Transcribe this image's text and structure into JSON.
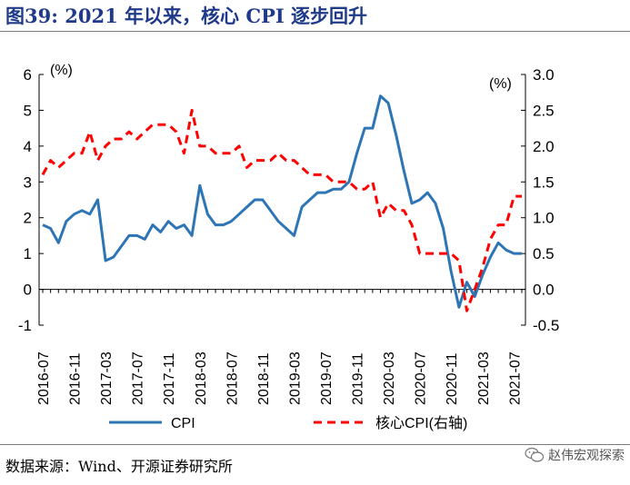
{
  "header": {
    "title": "图39:  2021 年以来，核心 CPI 逐步回升"
  },
  "footer": {
    "source": "数据来源：Wind、开源证券研究所",
    "watermark": "赵伟宏观探索"
  },
  "chart_data": {
    "type": "line",
    "title": "",
    "x": [
      "2016-07",
      "2016-08",
      "2016-09",
      "2016-10",
      "2016-11",
      "2016-12",
      "2017-01",
      "2017-02",
      "2017-03",
      "2017-04",
      "2017-05",
      "2017-06",
      "2017-07",
      "2017-08",
      "2017-09",
      "2017-10",
      "2017-11",
      "2017-12",
      "2018-01",
      "2018-02",
      "2018-03",
      "2018-04",
      "2018-05",
      "2018-06",
      "2018-07",
      "2018-08",
      "2018-09",
      "2018-10",
      "2018-11",
      "2018-12",
      "2019-01",
      "2019-02",
      "2019-03",
      "2019-04",
      "2019-05",
      "2019-06",
      "2019-07",
      "2019-08",
      "2019-09",
      "2019-10",
      "2019-11",
      "2019-12",
      "2020-01",
      "2020-02",
      "2020-03",
      "2020-04",
      "2020-05",
      "2020-06",
      "2020-07",
      "2020-08",
      "2020-09",
      "2020-10",
      "2020-11",
      "2020-12",
      "2021-01",
      "2021-02",
      "2021-03",
      "2021-04",
      "2021-05",
      "2021-06",
      "2021-07",
      "2021-08"
    ],
    "xtick_labels": [
      "2016-07",
      "2016-11",
      "2017-03",
      "2017-07",
      "2017-11",
      "2018-03",
      "2018-07",
      "2018-11",
      "2019-03",
      "2019-07",
      "2019-11",
      "2020-03",
      "2020-07",
      "2020-11",
      "2021-03",
      "2021-07"
    ],
    "series": [
      {
        "name": "CPI",
        "axis": "left",
        "color": "#2e75b6",
        "style": "solid",
        "values": [
          1.8,
          1.7,
          1.3,
          1.9,
          2.1,
          2.2,
          2.1,
          2.5,
          0.8,
          0.9,
          1.2,
          1.5,
          1.5,
          1.4,
          1.8,
          1.6,
          1.9,
          1.7,
          1.8,
          1.5,
          2.9,
          2.1,
          1.8,
          1.8,
          1.9,
          2.1,
          2.3,
          2.5,
          2.5,
          2.2,
          1.9,
          1.7,
          1.5,
          2.3,
          2.5,
          2.7,
          2.7,
          2.8,
          2.8,
          3.0,
          3.8,
          4.5,
          4.5,
          5.4,
          5.2,
          4.3,
          3.3,
          2.4,
          2.5,
          2.7,
          2.4,
          1.7,
          0.5,
          -0.5,
          0.2,
          -0.2,
          0.4,
          0.9,
          1.3,
          1.1,
          1.0,
          1.0
        ]
      },
      {
        "name": "核心CPI(右轴)",
        "axis": "right",
        "color": "#ff0000",
        "style": "dashed",
        "values": [
          1.6,
          1.8,
          1.7,
          1.8,
          1.9,
          1.9,
          2.2,
          1.8,
          2.0,
          2.1,
          2.1,
          2.2,
          2.1,
          2.2,
          2.3,
          2.3,
          2.3,
          2.2,
          1.9,
          2.5,
          2.0,
          2.0,
          1.9,
          1.9,
          1.9,
          2.0,
          1.7,
          1.8,
          1.8,
          1.8,
          1.9,
          1.8,
          1.8,
          1.7,
          1.6,
          1.6,
          1.6,
          1.5,
          1.5,
          1.5,
          1.4,
          1.4,
          1.5,
          1.0,
          1.2,
          1.1,
          1.1,
          0.9,
          0.5,
          0.5,
          0.5,
          0.5,
          0.5,
          0.4,
          -0.3,
          0.0,
          0.3,
          0.7,
          0.9,
          0.9,
          1.3,
          1.3
        ]
      }
    ],
    "y_left": {
      "label": "(%)",
      "lim": [
        -1,
        6
      ],
      "ticks": [
        "-1",
        "0",
        "1",
        "2",
        "3",
        "4",
        "5",
        "6"
      ]
    },
    "y_right": {
      "label": "(%)",
      "lim": [
        -0.5,
        3.0
      ],
      "ticks": [
        "-0.5",
        "0.0",
        "0.5",
        "1.0",
        "1.5",
        "2.0",
        "2.5",
        "3.0"
      ]
    },
    "legend": {
      "position": "bottom",
      "items": [
        "CPI",
        "核心CPI(右轴)"
      ]
    },
    "grid": false
  }
}
